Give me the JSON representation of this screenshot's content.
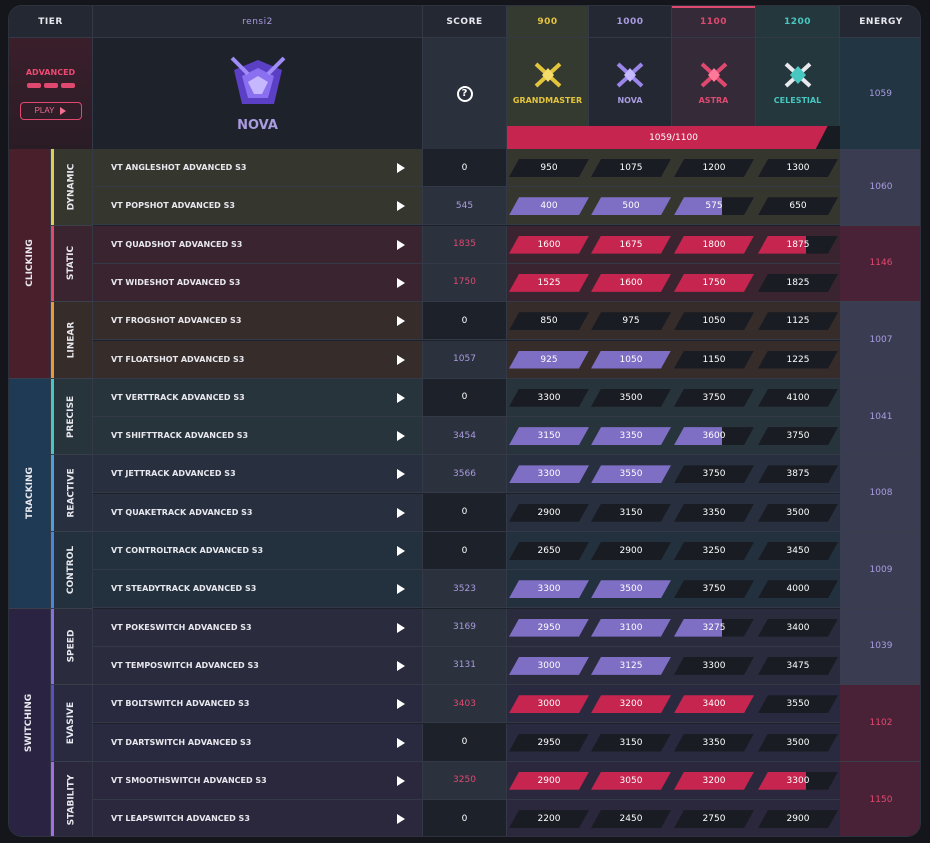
{
  "header": {
    "tier": "TIER",
    "player": "rensi2",
    "score": "SCORE",
    "ranks": [
      "900",
      "1000",
      "1100",
      "1200"
    ],
    "energy": "ENERGY"
  },
  "profile": {
    "tier_label": "ADVANCED",
    "play_label": "PLAY",
    "rank_name": "NOVA",
    "rank_labels": [
      "GRANDMASTER",
      "NOVA",
      "ASTRA",
      "CELESTIAL"
    ],
    "energy": "1059",
    "progress_text": "1059/1100",
    "progress_fraction": 0.963
  },
  "colors": {
    "purple": "#7e6ec4",
    "red": "#c5254f",
    "gold": "#e3c43d",
    "cyan": "#47c7c0"
  },
  "categories": [
    {
      "name": "CLICKING",
      "subs": [
        {
          "name": "DYNAMIC",
          "color": "#d8d24f",
          "energy": "1060",
          "tone": "purple",
          "rows": [
            {
              "name": "VT ANGLESHOT ADVANCED S3",
              "score": "0",
              "tone": "zero",
              "th": [
                "950",
                "1075",
                "1200",
                "1300"
              ],
              "fill": [
                "",
                "",
                "",
                ""
              ]
            },
            {
              "name": "VT POPSHOT ADVANCED S3",
              "score": "545",
              "tone": "pur",
              "th": [
                "400",
                "500",
                "575",
                "650"
              ],
              "fill": [
                "fp",
                "fp",
                "pp",
                ""
              ]
            }
          ]
        },
        {
          "name": "STATIC",
          "color": "#e0496f",
          "energy": "1146",
          "tone": "red",
          "rows": [
            {
              "name": "VT QUADSHOT ADVANCED S3",
              "score": "1835",
              "tone": "red",
              "th": [
                "1600",
                "1675",
                "1800",
                "1875"
              ],
              "fill": [
                "fr",
                "fr",
                "fr",
                "pr"
              ]
            },
            {
              "name": "VT WIDESHOT ADVANCED S3",
              "score": "1750",
              "tone": "red",
              "th": [
                "1525",
                "1600",
                "1750",
                "1825"
              ],
              "fill": [
                "fr",
                "fr",
                "fr",
                ""
              ]
            }
          ]
        },
        {
          "name": "LINEAR",
          "color": "#e79a3c",
          "energy": "1007",
          "tone": "purple",
          "rows": [
            {
              "name": "VT FROGSHOT ADVANCED S3",
              "score": "0",
              "tone": "zero",
              "th": [
                "850",
                "975",
                "1050",
                "1125"
              ],
              "fill": [
                "",
                "",
                "",
                ""
              ]
            },
            {
              "name": "VT FLOATSHOT ADVANCED S3",
              "score": "1057",
              "tone": "pur",
              "th": [
                "925",
                "1050",
                "1150",
                "1225"
              ],
              "fill": [
                "fp",
                "fp",
                "",
                ""
              ]
            }
          ]
        }
      ]
    },
    {
      "name": "TRACKING",
      "subs": [
        {
          "name": "PRECISE",
          "color": "#47c7c0",
          "energy": "1041",
          "tone": "purple",
          "rows": [
            {
              "name": "VT VERTTRACK ADVANCED S3",
              "score": "0",
              "tone": "zero",
              "th": [
                "3300",
                "3500",
                "3750",
                "4100"
              ],
              "fill": [
                "",
                "",
                "",
                ""
              ]
            },
            {
              "name": "VT SHIFTTRACK ADVANCED S3",
              "score": "3454",
              "tone": "pur",
              "th": [
                "3150",
                "3350",
                "3600",
                "3750"
              ],
              "fill": [
                "fp",
                "fp",
                "pp",
                ""
              ]
            }
          ]
        },
        {
          "name": "REACTIVE",
          "color": "#4aa3d8",
          "energy": "1008",
          "tone": "purple",
          "rows": [
            {
              "name": "VT JETTRACK ADVANCED S3",
              "score": "3566",
              "tone": "pur",
              "th": [
                "3300",
                "3550",
                "3750",
                "3875"
              ],
              "fill": [
                "fp",
                "fp",
                "",
                ""
              ]
            },
            {
              "name": "VT QUAKETRACK ADVANCED S3",
              "score": "0",
              "tone": "zero",
              "th": [
                "2900",
                "3150",
                "3350",
                "3500"
              ],
              "fill": [
                "",
                "",
                "",
                ""
              ]
            }
          ]
        },
        {
          "name": "CONTROL",
          "color": "#4a86d8",
          "energy": "1009",
          "tone": "purple",
          "rows": [
            {
              "name": "VT CONTROLTRACK ADVANCED S3",
              "score": "0",
              "tone": "zero",
              "th": [
                "2650",
                "2900",
                "3250",
                "3450"
              ],
              "fill": [
                "",
                "",
                "",
                ""
              ]
            },
            {
              "name": "VT STEADYTRACK ADVANCED S3",
              "score": "3523",
              "tone": "pur",
              "th": [
                "3300",
                "3500",
                "3750",
                "4000"
              ],
              "fill": [
                "fp",
                "fp",
                "",
                ""
              ]
            }
          ]
        }
      ]
    },
    {
      "name": "SWITCHING",
      "subs": [
        {
          "name": "SPEED",
          "color": "#8b6fe0",
          "energy": "1039",
          "tone": "purple",
          "rows": [
            {
              "name": "VT POKESWITCH ADVANCED S3",
              "score": "3169",
              "tone": "pur",
              "th": [
                "2950",
                "3100",
                "3275",
                "3400"
              ],
              "fill": [
                "fp",
                "fp",
                "pp",
                ""
              ]
            },
            {
              "name": "VT TEMPOSWITCH ADVANCED S3",
              "score": "3131",
              "tone": "pur",
              "th": [
                "3000",
                "3125",
                "3300",
                "3475"
              ],
              "fill": [
                "fp",
                "fp",
                "",
                ""
              ]
            }
          ]
        },
        {
          "name": "EVASIVE",
          "color": "#5b4fc0",
          "energy": "1102",
          "tone": "red",
          "rows": [
            {
              "name": "VT BOLTSWITCH ADVANCED S3",
              "score": "3403",
              "tone": "red",
              "th": [
                "3000",
                "3200",
                "3400",
                "3550"
              ],
              "fill": [
                "fr",
                "fr",
                "fr",
                ""
              ]
            },
            {
              "name": "VT DARTSWITCH ADVANCED S3",
              "score": "0",
              "tone": "zero",
              "th": [
                "2950",
                "3150",
                "3350",
                "3500"
              ],
              "fill": [
                "",
                "",
                "",
                ""
              ]
            }
          ]
        },
        {
          "name": "STABILITY",
          "color": "#a36fe0",
          "energy": "1150",
          "tone": "red",
          "rows": [
            {
              "name": "VT SMOOTHSWITCH ADVANCED S3",
              "score": "3250",
              "tone": "red",
              "th": [
                "2900",
                "3050",
                "3200",
                "3300"
              ],
              "fill": [
                "fr",
                "fr",
                "fr",
                "pr"
              ]
            },
            {
              "name": "VT LEAPSWITCH ADVANCED S3",
              "score": "0",
              "tone": "zero",
              "th": [
                "2200",
                "2450",
                "2750",
                "2900"
              ],
              "fill": [
                "",
                "",
                "",
                ""
              ]
            }
          ]
        }
      ]
    }
  ]
}
